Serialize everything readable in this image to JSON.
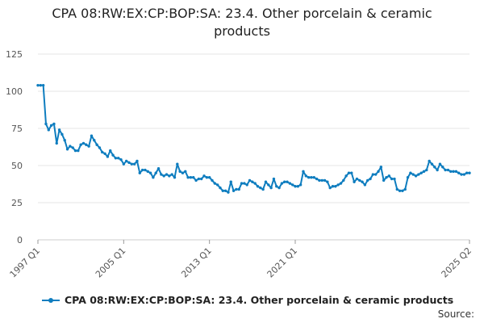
{
  "chart_data": {
    "type": "line",
    "title": "CPA 08:RW:EX:CP:BOP:SA: 23.4. Other porcelain & ceramic products",
    "xlabel": "",
    "ylabel": "",
    "ylim": [
      0,
      125
    ],
    "y_ticks": [
      0,
      25,
      50,
      75,
      100,
      125
    ],
    "x_tick_labels": [
      "1997 Q1",
      "2005 Q1",
      "2013 Q1",
      "2021 Q1",
      "2025 Q2"
    ],
    "grid": true,
    "legend_placement": "bottom",
    "series": [
      {
        "name": "CPA 08:RW:EX:CP:BOP:SA: 23.4. Other porcelain & ceramic products",
        "color": "#0e7dbf",
        "values": [
          104,
          104,
          104,
          78,
          74,
          77,
          78,
          65,
          74,
          71,
          67,
          61,
          63,
          62,
          60,
          60,
          64,
          65,
          64,
          63,
          70,
          67,
          64,
          62,
          59,
          58,
          56,
          60,
          57,
          55,
          55,
          54,
          51,
          53,
          52,
          51,
          51,
          53,
          45,
          47,
          47,
          46,
          45,
          42,
          45,
          48,
          44,
          43,
          44,
          43,
          44,
          42,
          51,
          46,
          45,
          46,
          42,
          42,
          42,
          40,
          41,
          41,
          43,
          42,
          42,
          40,
          38,
          37,
          35,
          33,
          33,
          32,
          39,
          33,
          34,
          34,
          38,
          38,
          37,
          40,
          39,
          38,
          36,
          35,
          34,
          39,
          37,
          35,
          41,
          36,
          35,
          38,
          39,
          39,
          38,
          37,
          36,
          36,
          37,
          46,
          43,
          42,
          42,
          42,
          41,
          40,
          40,
          40,
          39,
          35,
          36,
          36,
          37,
          38,
          40,
          43,
          45,
          45,
          39,
          41,
          40,
          39,
          37,
          40,
          41,
          44,
          44,
          46,
          49,
          40,
          42,
          43,
          41,
          41,
          34,
          33,
          33,
          34,
          42,
          45,
          44,
          43,
          44,
          45,
          46,
          47,
          53,
          51,
          49,
          47,
          51,
          49,
          47,
          47,
          46,
          46,
          46,
          45,
          44,
          44,
          45,
          45
        ]
      }
    ]
  },
  "legend": {
    "label": "CPA 08:RW:EX:CP:BOP:SA: 23.4. Other porcelain & ceramic products"
  },
  "footer": {
    "source_label": "Source:"
  }
}
